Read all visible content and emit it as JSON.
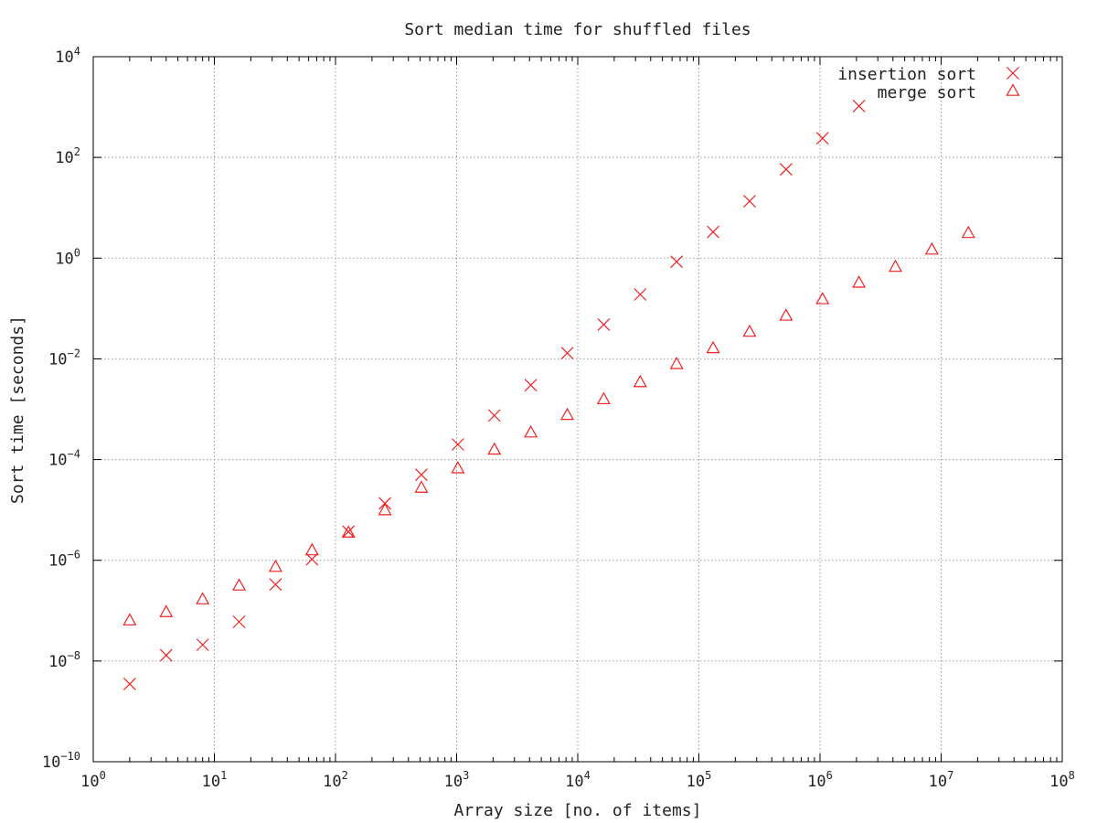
{
  "chart_data": {
    "type": "scatter",
    "title": "Sort median time for shuffled files",
    "xlabel": "Array size [no. of items]",
    "ylabel": "Sort time [seconds]",
    "x_scale": "log",
    "y_scale": "log",
    "xlim": [
      1,
      100000000
    ],
    "ylim": [
      1e-10,
      10000
    ],
    "grid": true,
    "legend_position": "top-right",
    "x_ticks": [
      {
        "base": "10",
        "exp": "0",
        "value": 1
      },
      {
        "base": "10",
        "exp": "1",
        "value": 10
      },
      {
        "base": "10",
        "exp": "2",
        "value": 100
      },
      {
        "base": "10",
        "exp": "3",
        "value": 1000
      },
      {
        "base": "10",
        "exp": "4",
        "value": 10000
      },
      {
        "base": "10",
        "exp": "5",
        "value": 100000
      },
      {
        "base": "10",
        "exp": "6",
        "value": 1000000
      },
      {
        "base": "10",
        "exp": "7",
        "value": 10000000
      },
      {
        "base": "10",
        "exp": "8",
        "value": 100000000
      }
    ],
    "y_ticks": [
      {
        "base": "10",
        "exp": "−10",
        "value": 1e-10
      },
      {
        "base": "10",
        "exp": "−8",
        "value": 1e-08
      },
      {
        "base": "10",
        "exp": "−6",
        "value": 1e-06
      },
      {
        "base": "10",
        "exp": "−4",
        "value": 0.0001
      },
      {
        "base": "10",
        "exp": "−2",
        "value": 0.01
      },
      {
        "base": "10",
        "exp": "0",
        "value": 1
      },
      {
        "base": "10",
        "exp": "2",
        "value": 100
      },
      {
        "base": "10",
        "exp": "4",
        "value": 10000
      }
    ],
    "series": [
      {
        "name": "insertion sort",
        "marker": "x",
        "color": "#ee2222",
        "x": [
          2,
          4,
          8,
          16,
          32,
          64,
          128,
          256,
          512,
          1024,
          2048,
          4096,
          8192,
          16384,
          32768,
          65536,
          131072,
          262144,
          524288,
          1048576,
          2097152
        ],
        "y": [
          3.5e-09,
          1.3e-08,
          2.1e-08,
          6e-08,
          3.3e-07,
          1.05e-06,
          3.7e-06,
          1.35e-05,
          5e-05,
          0.0002,
          0.00075,
          0.003,
          0.013,
          0.048,
          0.19,
          0.85,
          3.3,
          13.5,
          58,
          240,
          1050
        ]
      },
      {
        "name": "merge sort",
        "marker": "triangle",
        "color": "#ee2222",
        "x": [
          2,
          4,
          8,
          16,
          32,
          64,
          128,
          256,
          512,
          1024,
          2048,
          4096,
          8192,
          16384,
          32768,
          65536,
          131072,
          262144,
          524288,
          1048576,
          2097152,
          4194304,
          8388608,
          16777216
        ],
        "y": [
          6.5e-08,
          9.5e-08,
          1.7e-07,
          3.2e-07,
          7.5e-07,
          1.6e-06,
          3.6e-06,
          1e-05,
          2.8e-05,
          6.8e-05,
          0.00016,
          0.00035,
          0.00078,
          0.0016,
          0.0035,
          0.008,
          0.0165,
          0.035,
          0.073,
          0.155,
          0.33,
          0.68,
          1.5,
          3.2
        ]
      }
    ]
  }
}
